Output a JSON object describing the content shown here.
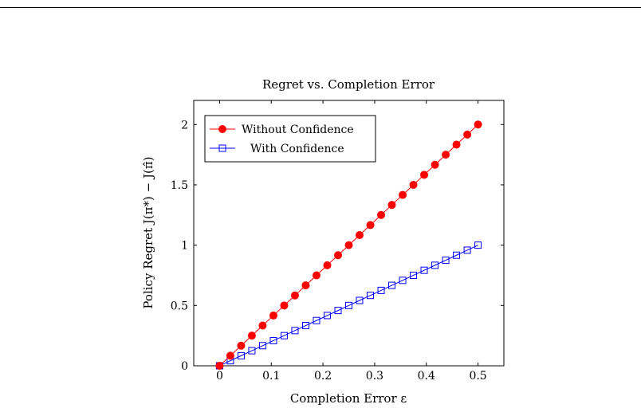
{
  "chart_data": {
    "type": "line",
    "title": "Regret vs. Completion Error",
    "xlabel": "Completion Error ε",
    "ylabel": "Policy Regret J(π*) − J(π̂)",
    "xlim": [
      -0.05,
      0.55
    ],
    "ylim": [
      0,
      2.2
    ],
    "xticks": [
      "0",
      "0.1",
      "0.2",
      "0.3",
      "0.4",
      "0.5"
    ],
    "yticks": [
      "0",
      "0.5",
      "1",
      "1.5",
      "2"
    ],
    "grid": false,
    "legend_position": "top-left",
    "x": [
      0,
      0.0208,
      0.0417,
      0.0625,
      0.0833,
      0.1042,
      0.125,
      0.1458,
      0.1667,
      0.1875,
      0.2083,
      0.2292,
      0.25,
      0.2708,
      0.2917,
      0.3125,
      0.3333,
      0.3542,
      0.375,
      0.3958,
      0.4167,
      0.4375,
      0.4583,
      0.4792,
      0.5
    ],
    "series": [
      {
        "name": "Without Confidence",
        "color": "#ff0000",
        "marker": "filled-circle",
        "values": [
          0,
          0.0833,
          0.1667,
          0.25,
          0.3333,
          0.4167,
          0.5,
          0.5833,
          0.6667,
          0.75,
          0.8333,
          0.9167,
          1.0,
          1.0833,
          1.1667,
          1.25,
          1.3333,
          1.4167,
          1.5,
          1.5833,
          1.6667,
          1.75,
          1.8333,
          1.9167,
          2.0
        ]
      },
      {
        "name": "With Confidence",
        "color": "#0000ff",
        "marker": "open-square",
        "values": [
          0,
          0.0417,
          0.0833,
          0.125,
          0.1667,
          0.2083,
          0.25,
          0.2917,
          0.3333,
          0.375,
          0.4167,
          0.4583,
          0.5,
          0.5417,
          0.5833,
          0.625,
          0.6667,
          0.7083,
          0.75,
          0.7917,
          0.8333,
          0.875,
          0.9167,
          0.9583,
          1.0
        ]
      }
    ]
  }
}
